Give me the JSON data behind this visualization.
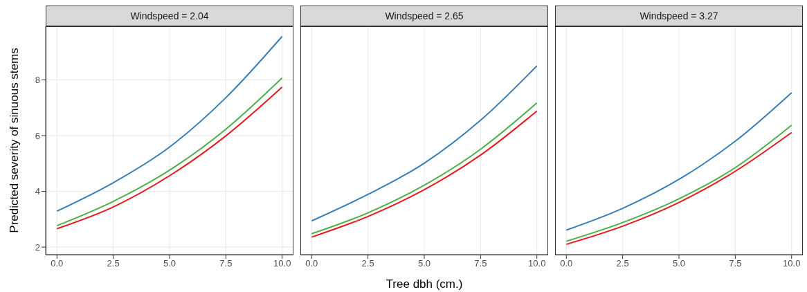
{
  "chart_data": [
    {
      "type": "line",
      "title": "Windspeed = 2.04",
      "ylabel": "Predicted severity  of sinuous stems",
      "x": [
        0,
        2.5,
        5,
        7.5,
        10
      ],
      "series": [
        {
          "color": "#377eb8",
          "values": [
            3.29,
            4.31,
            5.59,
            7.36,
            9.56
          ]
        },
        {
          "color": "#4daf4a",
          "values": [
            2.77,
            3.64,
            4.76,
            6.23,
            8.07
          ]
        },
        {
          "color": "#e41a1c",
          "values": [
            2.66,
            3.44,
            4.56,
            5.99,
            7.74
          ]
        }
      ],
      "xlim": [
        -0.5,
        10.5
      ],
      "xticks": [
        {
          "value": 0,
          "label": "0.0"
        },
        {
          "value": 2.5,
          "label": "2.5"
        },
        {
          "value": 5,
          "label": "5.0"
        },
        {
          "value": 7.5,
          "label": "7.5"
        },
        {
          "value": 10,
          "label": "10.0"
        }
      ],
      "ylim": [
        1.73,
        9.92
      ],
      "yticks": [
        2,
        4,
        6,
        8
      ],
      "grid": true,
      "marker": "none",
      "line_style": "solid"
    },
    {
      "type": "line",
      "title": "Windspeed = 2.65",
      "xlabel": "Tree dbh (cm.)",
      "x": [
        0,
        2.5,
        5,
        7.5,
        10
      ],
      "series": [
        {
          "color": "#377eb8",
          "values": [
            2.94,
            3.89,
            5.01,
            6.55,
            8.5
          ]
        },
        {
          "color": "#4daf4a",
          "values": [
            2.48,
            3.23,
            4.22,
            5.51,
            7.17
          ]
        },
        {
          "color": "#e41a1c",
          "values": [
            2.36,
            3.1,
            4.06,
            5.3,
            6.88
          ]
        }
      ],
      "xlim": [
        -0.5,
        10.5
      ],
      "xticks": [
        {
          "value": 0,
          "label": "0.0"
        },
        {
          "value": 2.5,
          "label": "2.5"
        },
        {
          "value": 5,
          "label": "5.0"
        },
        {
          "value": 7.5,
          "label": "7.5"
        },
        {
          "value": 10,
          "label": "10.0"
        }
      ],
      "ylim": [
        1.73,
        9.92
      ],
      "yticks": [
        2,
        4,
        6,
        8
      ],
      "grid": true,
      "marker": "none",
      "line_style": "solid",
      "tick_labels": "x"
    },
    {
      "type": "line",
      "title": "Windspeed = 3.27",
      "x": [
        0,
        2.5,
        5,
        7.5,
        10
      ],
      "series": [
        {
          "color": "#377eb8",
          "values": [
            2.61,
            3.39,
            4.43,
            5.8,
            7.54
          ]
        },
        {
          "color": "#4daf4a",
          "values": [
            2.21,
            2.88,
            3.73,
            4.85,
            6.37
          ]
        },
        {
          "color": "#e41a1c",
          "values": [
            2.1,
            2.75,
            3.6,
            4.72,
            6.11
          ]
        }
      ],
      "xlim": [
        -0.5,
        10.5
      ],
      "xticks": [
        {
          "value": 0,
          "label": "0.0"
        },
        {
          "value": 2.5,
          "label": "2.5"
        },
        {
          "value": 5,
          "label": "5.0"
        },
        {
          "value": 7.5,
          "label": "7.5"
        },
        {
          "value": 10,
          "label": "10.0"
        }
      ],
      "ylim": [
        1.73,
        9.92
      ],
      "yticks": [
        2,
        4,
        6,
        8
      ],
      "grid": true,
      "marker": "none",
      "line_style": "solid",
      "tick_labels": "x"
    }
  ]
}
